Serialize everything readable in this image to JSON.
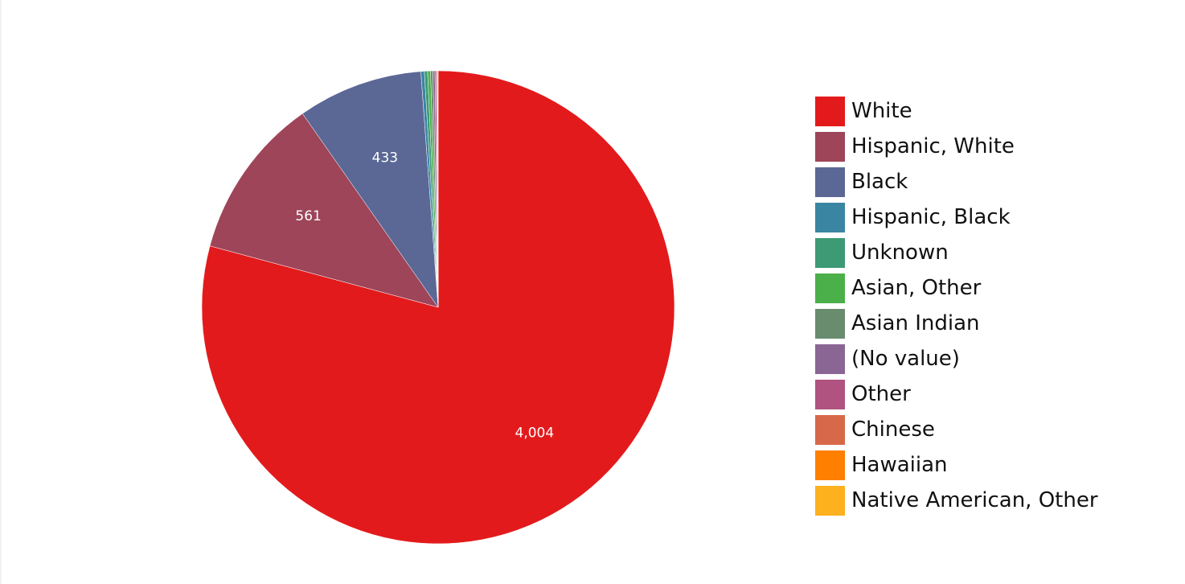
{
  "chart_data": {
    "type": "pie",
    "title": "",
    "series": [
      {
        "name": "White",
        "value": 4004,
        "color": "#e31a1c",
        "label": "4,004"
      },
      {
        "name": "Hispanic, White",
        "value": 561,
        "color": "#9e4559",
        "label": "561"
      },
      {
        "name": "Black",
        "value": 433,
        "color": "#5b6896",
        "label": "433"
      },
      {
        "name": "Hispanic, Black",
        "value": 12,
        "color": "#3a85a2",
        "label": ""
      },
      {
        "name": "Unknown",
        "value": 11,
        "color": "#3d9a75",
        "label": ""
      },
      {
        "name": "Asian, Other",
        "value": 10,
        "color": "#4bb04a",
        "label": ""
      },
      {
        "name": "Asian Indian",
        "value": 8,
        "color": "#6a8c6e",
        "label": ""
      },
      {
        "name": "(No value)",
        "value": 7,
        "color": "#8a6694",
        "label": ""
      },
      {
        "name": "Other",
        "value": 5,
        "color": "#b05380",
        "label": ""
      },
      {
        "name": "Chinese",
        "value": 3,
        "color": "#d7694a",
        "label": ""
      },
      {
        "name": "Hawaiian",
        "value": 2,
        "color": "#ff7f00",
        "label": ""
      },
      {
        "name": "Native American, Other",
        "value": 1,
        "color": "#fdb11e",
        "label": ""
      }
    ],
    "legend": "right"
  }
}
